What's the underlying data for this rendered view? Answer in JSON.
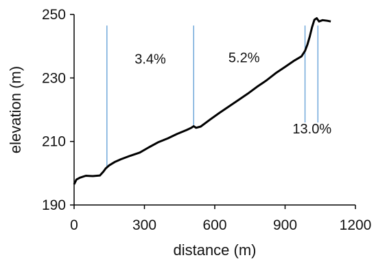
{
  "chart_data": {
    "type": "line",
    "title": "",
    "xlabel": "distance  (m)",
    "ylabel": "elevation  (m)",
    "xlim": [
      0,
      1200
    ],
    "ylim": [
      190,
      250
    ],
    "x_ticks": [
      0,
      300,
      600,
      900,
      1200
    ],
    "y_ticks": [
      190,
      210,
      230,
      250
    ],
    "grid": false,
    "legend": "none",
    "line_color": "#000000",
    "marker_color": "#5B9BD5",
    "series": [
      {
        "x": [
          0,
          10,
          25,
          50,
          80,
          110,
          125,
          135,
          150,
          175,
          200,
          240,
          280,
          320,
          360,
          400,
          440,
          480,
          500,
          510,
          520,
          540,
          580,
          620,
          660,
          700,
          740,
          780,
          820,
          860,
          900,
          940,
          970,
          985,
          995,
          1005,
          1015,
          1025,
          1035,
          1045,
          1060,
          1080,
          1095
        ],
        "y": [
          196.5,
          198,
          198.6,
          199.2,
          199.1,
          199.3,
          200.5,
          201.5,
          202.5,
          203.6,
          204.4,
          205.5,
          206.5,
          208.2,
          209.8,
          211,
          212.4,
          213.6,
          214.3,
          214.8,
          214.3,
          214.7,
          216.9,
          219,
          221,
          223,
          225,
          227.2,
          229.2,
          231.5,
          233.5,
          235.5,
          236.8,
          238.5,
          240.5,
          243,
          246,
          248.3,
          248.8,
          247.8,
          248.2,
          248,
          247.8
        ]
      }
    ],
    "vertical_markers": [
      {
        "x": 140,
        "y_bottom": 201.5,
        "y_top": 246.5
      },
      {
        "x": 510,
        "y_bottom": 214.5,
        "y_top": 246.5
      },
      {
        "x": 985,
        "y_bottom": 216,
        "y_top": 246.5
      },
      {
        "x": 1040,
        "y_bottom": 216,
        "y_top": 246.5
      }
    ],
    "annotations": [
      {
        "text": "3.4%",
        "x": 325,
        "y": 234.5
      },
      {
        "text": "5.2%",
        "x": 725,
        "y": 235
      },
      {
        "text": "13.0%",
        "x": 1015,
        "y": 212.5
      }
    ]
  }
}
